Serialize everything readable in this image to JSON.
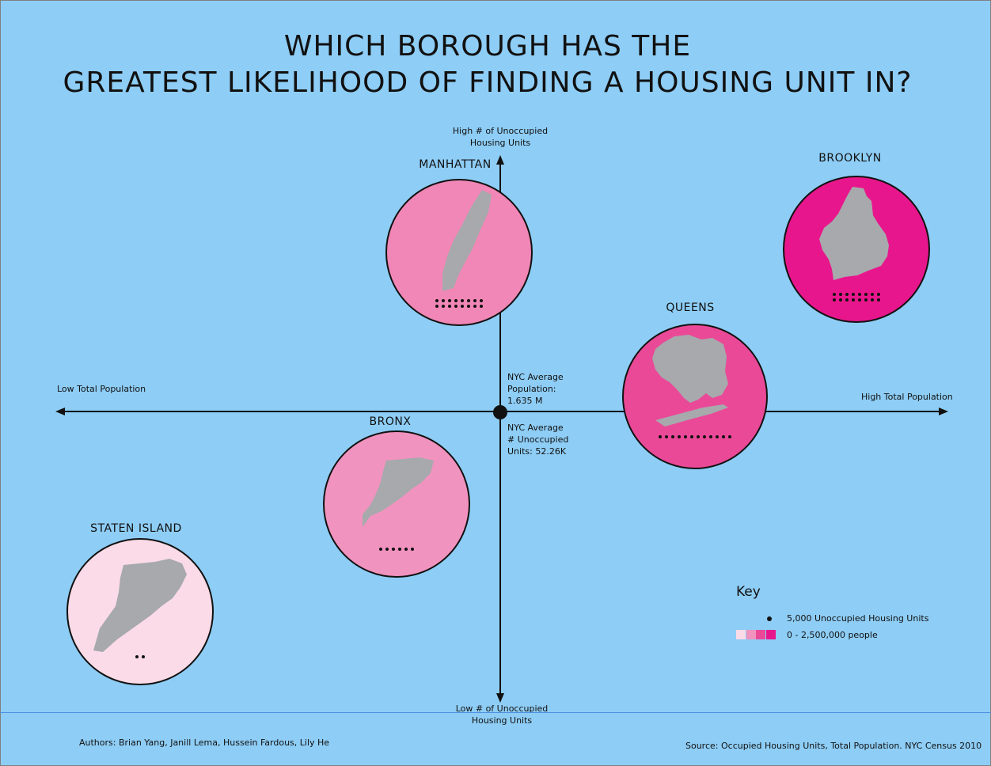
{
  "title": {
    "line1": "WHICH BOROUGH HAS THE",
    "line2": "GREATEST LIKELIHOOD OF FINDING A HOUSING UNIT IN?"
  },
  "axes": {
    "top": "High # of Unoccupied\nHousing Units",
    "bottom": "Low # of Unoccupied\nHousing Units",
    "left": "Low Total Population",
    "right": "High Total Population"
  },
  "center": {
    "population": "NYC Average\nPopulation:\n1.635 M",
    "unoccupied": "NYC Average\n# Unoccupied\nUnits: 52.26K"
  },
  "boroughs": [
    {
      "name": "MANHATTAN",
      "dots": 16,
      "fill": "#f187b6"
    },
    {
      "name": "BROOKLYN",
      "dots": 16,
      "fill": "#e8168c"
    },
    {
      "name": "QUEENS",
      "dots": 12,
      "fill": "#ea4998"
    },
    {
      "name": "BRONX",
      "dots": 6,
      "fill": "#f193bf"
    },
    {
      "name": "STATEN ISLAND",
      "dots": 2,
      "fill": "#fadbe7"
    }
  ],
  "key": {
    "title": "Key",
    "dot_label": "5,000 Unoccupied Housing Units",
    "scale_label": "0 - 2,500,000 people",
    "scale_colors": [
      "#fadbe7",
      "#f193bf",
      "#ea4998",
      "#e8168c"
    ]
  },
  "footer": {
    "authors": "Authors: Brian Yang, Janill Lema, Hussein Fardous, Lily He",
    "source": "Source: Occupied Housing Units, Total Population. NYC Census 2010"
  },
  "colors": {
    "background": "#8ecdf5",
    "land": "#a7a9ac",
    "axis": "#111111"
  }
}
